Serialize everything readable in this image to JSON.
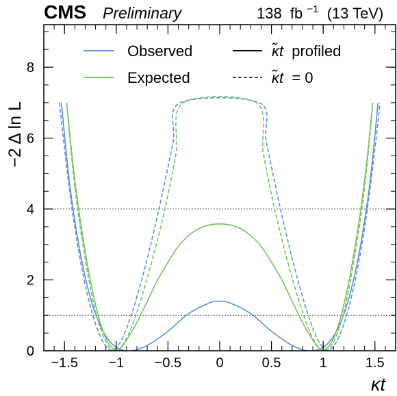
{
  "header": {
    "experiment": "CMS",
    "status": "Preliminary",
    "lumi_value": "138",
    "lumi_unit": "fb",
    "lumi_exponent": "−1",
    "energy": "(13 TeV)"
  },
  "chart_data": {
    "type": "line",
    "xlabel": "κt",
    "ylabel": "−2 Δ ln L",
    "xlim": [
      -1.7,
      1.7
    ],
    "ylim": [
      0,
      9.2
    ],
    "x_ticks": [
      -1.5,
      -1.0,
      -0.5,
      0,
      0.5,
      1.0,
      1.5
    ],
    "x_tick_labels": [
      "−1.5",
      "−1",
      "−0.5",
      "0",
      "0.5",
      "1",
      "1.5"
    ],
    "y_ticks": [
      0,
      2,
      4,
      6,
      8
    ],
    "y_tick_labels": [
      "0",
      "2",
      "4",
      "6",
      "8"
    ],
    "reference_lines": [
      1,
      4
    ],
    "grid": false,
    "legend_position": "top",
    "legend": {
      "color_entries": [
        {
          "label": "Observed",
          "color": "#5b8fe0"
        },
        {
          "label": "Expected",
          "color": "#74c35a"
        }
      ],
      "style_entries": [
        {
          "label_symbol": "κ̃t",
          "label_text": "profiled",
          "style": "solid"
        },
        {
          "label_symbol": "κ̃t",
          "label_text": "= 0",
          "style": "dashed"
        }
      ]
    },
    "series": [
      {
        "name": "Observed",
        "style": "solid",
        "color": "#5b8fe0",
        "x": [
          -1.53,
          -1.45,
          -1.35,
          -1.25,
          -1.15,
          -1.05,
          -0.95,
          -0.85,
          -0.7,
          -0.5,
          -0.3,
          -0.1,
          0,
          0.1,
          0.3,
          0.5,
          0.7,
          0.85,
          0.95,
          1.05,
          1.15,
          1.25,
          1.35,
          1.45,
          1.53
        ],
        "y": [
          7.0,
          4.7,
          2.8,
          1.5,
          0.68,
          0.22,
          0.03,
          0.0,
          0.15,
          0.55,
          1.05,
          1.35,
          1.4,
          1.35,
          1.05,
          0.55,
          0.15,
          0.0,
          0.03,
          0.22,
          0.68,
          1.5,
          2.8,
          4.7,
          7.0
        ]
      },
      {
        "name": "Observed",
        "style": "dashed",
        "color": "#5b8fe0",
        "x": [
          -1.55,
          -1.45,
          -1.35,
          -1.25,
          -1.15,
          -1.05,
          -0.95,
          -0.85,
          -0.75,
          -0.65,
          -0.55,
          -0.45,
          -0.38,
          0.38,
          0.45,
          0.55,
          0.65,
          0.75,
          0.85,
          0.95,
          1.05,
          1.15,
          1.25,
          1.35,
          1.45,
          1.55
        ],
        "y": [
          7.0,
          4.5,
          2.6,
          1.25,
          0.38,
          0.02,
          0.3,
          1.05,
          2.05,
          3.2,
          4.5,
          5.9,
          7.0,
          7.0,
          5.9,
          4.5,
          3.2,
          2.05,
          1.05,
          0.3,
          0.02,
          0.38,
          1.25,
          2.6,
          4.5,
          7.0
        ]
      },
      {
        "name": "Expected",
        "style": "solid",
        "color": "#74c35a",
        "x": [
          -1.48,
          -1.4,
          -1.3,
          -1.2,
          -1.1,
          -1.0,
          -0.95,
          -0.9,
          -0.8,
          -0.7,
          -0.6,
          -0.5,
          -0.4,
          -0.3,
          -0.2,
          -0.1,
          0,
          0.1,
          0.2,
          0.3,
          0.4,
          0.5,
          0.6,
          0.7,
          0.8,
          0.9,
          0.95,
          1.0,
          1.1,
          1.2,
          1.3,
          1.4,
          1.48
        ],
        "y": [
          7.0,
          4.8,
          2.8,
          1.3,
          0.35,
          0.0,
          0.1,
          0.3,
          0.8,
          1.4,
          2.0,
          2.5,
          2.95,
          3.25,
          3.45,
          3.55,
          3.58,
          3.55,
          3.45,
          3.25,
          2.95,
          2.5,
          2.0,
          1.4,
          0.8,
          0.3,
          0.1,
          0.0,
          0.35,
          1.3,
          2.8,
          4.8,
          7.0
        ]
      },
      {
        "name": "Expected",
        "style": "dashed",
        "color": "#74c35a",
        "x": [
          -1.48,
          -1.4,
          -1.3,
          -1.2,
          -1.1,
          -1.0,
          -0.9,
          -0.8,
          -0.7,
          -0.6,
          -0.5,
          -0.42,
          -0.35,
          0.35,
          0.42,
          0.5,
          0.6,
          0.7,
          0.8,
          0.9,
          1.0,
          1.1,
          1.2,
          1.3,
          1.4,
          1.48
        ],
        "y": [
          7.0,
          4.6,
          2.6,
          1.1,
          0.25,
          0.0,
          0.35,
          1.1,
          2.05,
          3.15,
          4.4,
          5.6,
          7.0,
          7.0,
          5.6,
          4.4,
          3.15,
          2.05,
          1.1,
          0.35,
          0.0,
          0.25,
          1.1,
          2.6,
          4.6,
          7.0
        ]
      }
    ]
  }
}
